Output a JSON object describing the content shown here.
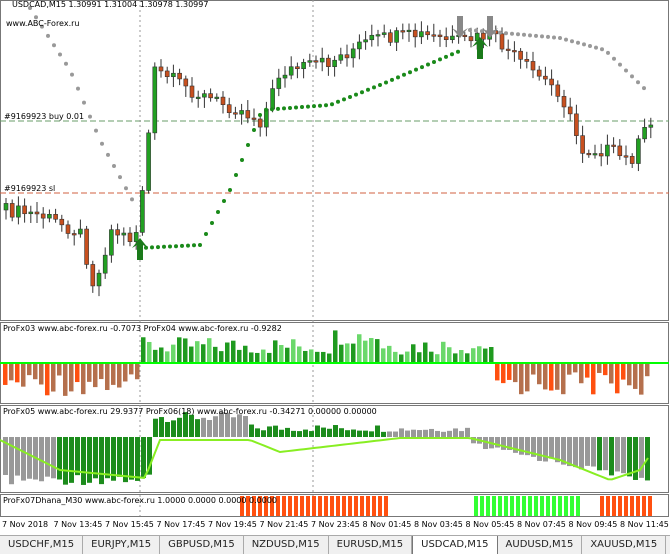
{
  "header": {
    "symbol_info": "USDCAD,M15  1.30991  1.31004  1.30978  1.30997",
    "site": "www.ABC-Forex.ru"
  },
  "order_lines": {
    "buy": "#9169923 buy 0.01",
    "sl": "#9169923 sl"
  },
  "indicators": {
    "panel1": "ProFx03 www.abc-forex.ru -0.7073  ProFx04 www.abc-forex.ru -0.9282",
    "panel2": "ProFx05 www.abc-forex.ru 29.9377  ProFx06(18) www.abc-forex.ru -0.34271 0.00000 0.00000",
    "panel3": "ProFx07Dhana_M30 www.abc-forex.ru 1.0000 0.0000 0.0000 0.0000"
  },
  "time_axis": [
    "7 Nov 2018",
    "7 Nov 13:45",
    "7 Nov 15:45",
    "7 Nov 17:45",
    "7 Nov 19:45",
    "7 Nov 21:45",
    "7 Nov 23:45",
    "8 Nov 01:45",
    "8 Nov 03:45",
    "8 Nov 05:45",
    "8 Nov 07:45",
    "8 Nov 09:45",
    "8 Nov 11:45"
  ],
  "tabs": [
    "USDCHF,M15",
    "EURJPY,M15",
    "GBPUSD,M15",
    "NZDUSD,M15",
    "EURUSD,M15",
    "USDCAD,M15",
    "AUDUSD,M15",
    "XAUUSD,M15"
  ],
  "active_tab": "USDCAD,M15"
}
